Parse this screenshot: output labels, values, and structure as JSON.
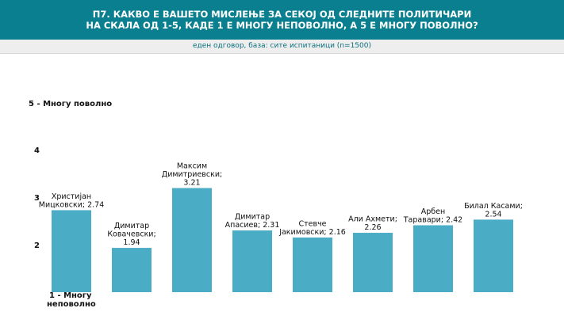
{
  "header": {
    "title": "П7. КАКВО Е ВАШЕТО МИСЛЕЊЕ ЗА СЕКОЈ ОД СЛЕДНИТЕ ПОЛИТИЧАРИ\nНА СКАЛА ОД 1-5, КАДЕ 1 Е МНОГУ НЕПОВОЛНО, А 5 Е МНОГУ ПОВОЛНО?",
    "subtitle": "еден одговор, база: сите испитаници (n=1500)"
  },
  "colors": {
    "header_bg": "#0a7f8f",
    "bar": "#4bacc6"
  },
  "chart_data": {
    "type": "bar",
    "title": "П7. КАКВО Е ВАШЕТО МИСЛЕЊЕ ЗА СЕКОЈ ОД СЛЕДНИТЕ ПОЛИТИЧАРИ НА СКАЛА ОД 1-5, КАДЕ 1 Е МНОГУ НЕПОВОЛНО, А 5 Е МНОГУ ПОВОЛНО?",
    "categories": [
      "Христијан Мицкоски",
      "Димитар Ковачевски",
      "Максим Димитриевски",
      "Димитар Апасиев",
      "Стевче Јакимовски",
      "Али Ахмети",
      "Арбен Таравари",
      "Билал Касами"
    ],
    "values": [
      2.74,
      1.94,
      3.21,
      2.31,
      2.16,
      2.26,
      2.42,
      2.54
    ],
    "data_labels": [
      [
        "Христијан",
        "Мицковски; 2.74"
      ],
      [
        "Димитар",
        "Ковачевски;",
        "1.94"
      ],
      [
        "Максим",
        "Димитриевски;",
        "3.21"
      ],
      [
        "Димитар",
        "Апасиев; 2.31"
      ],
      [
        "Стевче",
        "Јакимовски; 2.16"
      ],
      [
        "Али Ахмети;",
        "2.26"
      ],
      [
        "Арбен",
        "Таравари; 2.42"
      ],
      [
        "Билал Касами;",
        "2.54"
      ]
    ],
    "y_ticks": [
      {
        "value": 1,
        "label": [
          "1 - Многу",
          "неповолно"
        ]
      },
      {
        "value": 2,
        "label": [
          "2"
        ]
      },
      {
        "value": 3,
        "label": [
          "3"
        ]
      },
      {
        "value": 4,
        "label": [
          "4"
        ]
      },
      {
        "value": 5,
        "label": [
          "5 - Многу поволно"
        ]
      }
    ],
    "ylim": [
      1,
      5
    ],
    "grid": false,
    "legend": "none"
  }
}
